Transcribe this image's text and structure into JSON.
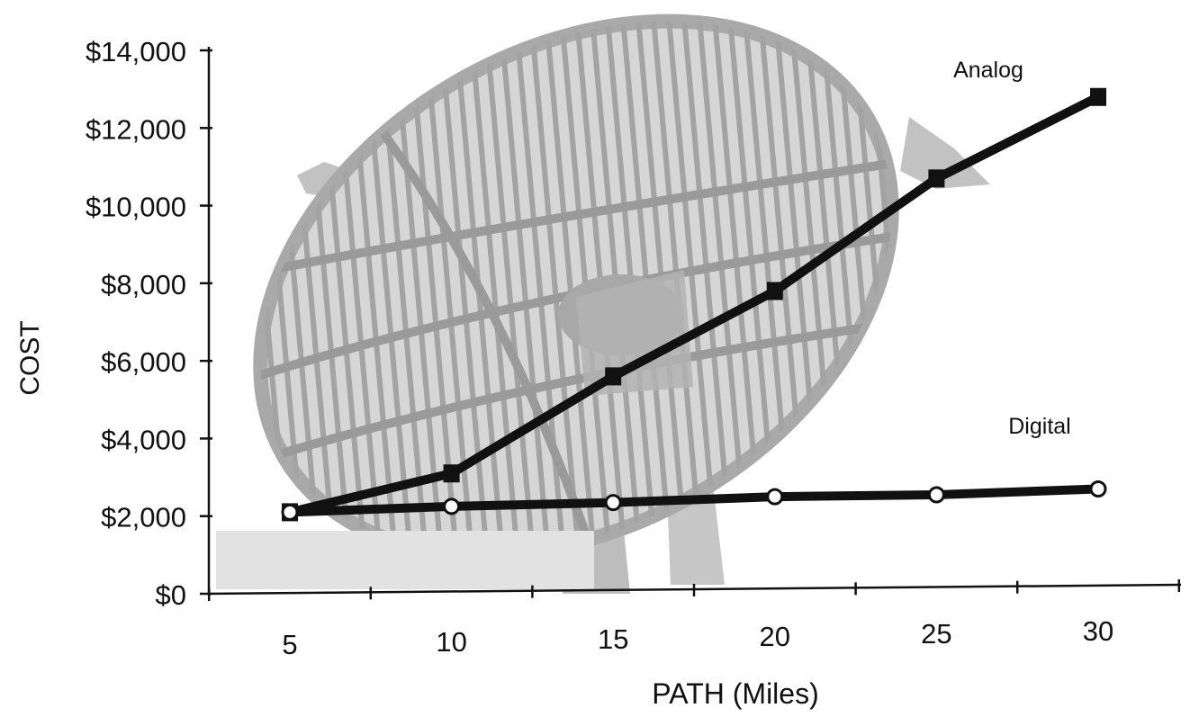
{
  "chart_data": {
    "type": "line",
    "title": "",
    "xlabel": "PATH (Miles)",
    "ylabel": "COST",
    "x": [
      5,
      10,
      15,
      20,
      25,
      30
    ],
    "xlim": [
      5,
      30
    ],
    "ylim": [
      0,
      14000
    ],
    "y_ticks": [
      0,
      2000,
      4000,
      6000,
      8000,
      10000,
      12000,
      14000
    ],
    "y_tick_labels": [
      "$0",
      "$2,000",
      "$4,000",
      "$6,000",
      "$8,000",
      "$10,000",
      "$12,000",
      "$14,000"
    ],
    "x_tick_labels": [
      "5",
      "10",
      "15",
      "20",
      "25",
      "30"
    ],
    "grid": false,
    "background_image": "satellite-dish-illustration",
    "series": [
      {
        "name": "Analog",
        "marker": "square",
        "values": [
          2100,
          3100,
          5600,
          7800,
          10700,
          12800
        ]
      },
      {
        "name": "Digital",
        "marker": "circle",
        "values": [
          2100,
          2250,
          2350,
          2500,
          2550,
          2700
        ]
      }
    ],
    "colors": {
      "line": "#111111",
      "dish": "#b8b8b8",
      "dish_dark": "#8e8e8e"
    }
  }
}
